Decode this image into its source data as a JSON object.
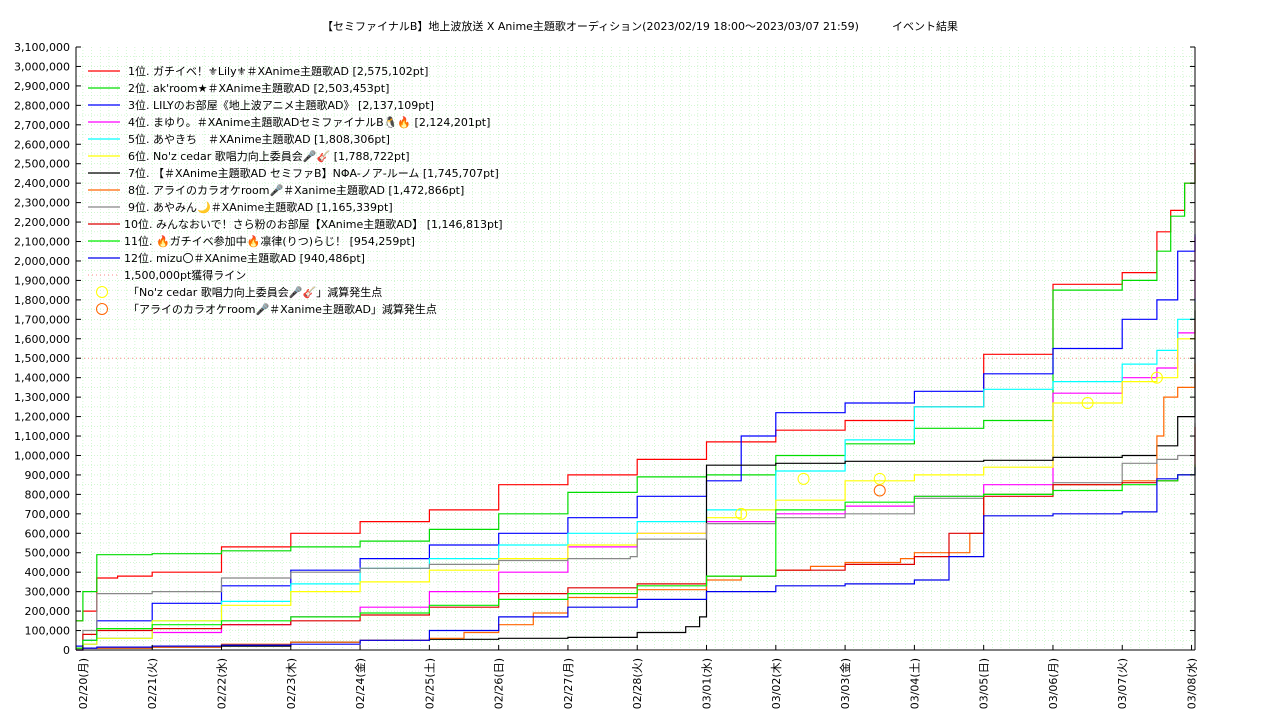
{
  "chart_data": {
    "type": "line",
    "title": "【セミファイナルB】地上波放送 X Anime主題歌オーディション(2023/02/19 18:00～2023/03/07 21:59)　　　イベント結果",
    "xlabel": "",
    "ylabel": "",
    "grid": true,
    "legend_position": "top-left",
    "ylim": [
      0,
      3100000
    ],
    "yticks": [
      0,
      100000,
      200000,
      300000,
      400000,
      500000,
      600000,
      700000,
      800000,
      900000,
      1000000,
      1100000,
      1200000,
      1300000,
      1400000,
      1500000,
      1600000,
      1700000,
      1800000,
      1900000,
      2000000,
      2100000,
      2200000,
      2300000,
      2400000,
      2500000,
      2600000,
      2700000,
      2800000,
      2900000,
      3000000,
      3100000
    ],
    "ytick_labels": [
      "0",
      "100,000",
      "200,000",
      "300,000",
      "400,000",
      "500,000",
      "600,000",
      "700,000",
      "800,000",
      "900,000",
      "1,000,000",
      "1,100,000",
      "1,200,000",
      "1,300,000",
      "1,400,000",
      "1,500,000",
      "1,600,000",
      "1,700,000",
      "1,800,000",
      "1,900,000",
      "2,000,000",
      "2,100,000",
      "2,200,000",
      "2,300,000",
      "2,400,000",
      "2,500,000",
      "2,600,000",
      "2,700,000",
      "2,800,000",
      "2,900,000",
      "3,000,000",
      "3,100,000"
    ],
    "xlim": [
      -0.1,
      16.05
    ],
    "xticks": [
      0,
      1,
      2,
      3,
      4,
      5,
      6,
      7,
      8,
      9,
      10,
      11,
      12,
      13,
      14,
      15,
      16
    ],
    "xtick_labels": [
      "02/20(月)",
      "02/21(火)",
      "02/22(水)",
      "02/23(木)",
      "02/24(金)",
      "02/25(土)",
      "02/26(日)",
      "02/27(月)",
      "02/28(火)",
      "03/01(水)",
      "03/02(木)",
      "03/03(金)",
      "03/04(土)",
      "03/05(日)",
      "03/06(月)",
      "03/07(火)",
      "03/08(水)"
    ],
    "series": [
      {
        "name": "1位. ガチイベ！⚜Lily⚜＃XAnime主題歌AD [2,575,102pt]",
        "color": "#ff0000",
        "x": [
          -0.1,
          0,
          0.2,
          0.5,
          1,
          2,
          3,
          4,
          5,
          6,
          7,
          8,
          9,
          10,
          11,
          12,
          13,
          14,
          15,
          15.5,
          15.7,
          15.9,
          16.05
        ],
        "y": [
          150000,
          200000,
          370000,
          380000,
          400000,
          530000,
          600000,
          660000,
          720000,
          850000,
          900000,
          980000,
          1070000,
          1130000,
          1180000,
          1250000,
          1520000,
          1880000,
          1940000,
          2150000,
          2260000,
          2400000,
          2575102
        ]
      },
      {
        "name": "2位. ak'room★＃XAnime主題歌AD [2,503,453pt]",
        "color": "#00dd00",
        "x": [
          -0.1,
          0,
          0.2,
          1,
          2,
          3,
          4,
          5,
          6,
          7,
          8,
          9,
          10,
          11,
          12,
          13,
          14,
          15,
          15.5,
          15.7,
          15.9,
          16.05
        ],
        "y": [
          150000,
          300000,
          490000,
          495000,
          510000,
          530000,
          560000,
          620000,
          700000,
          810000,
          890000,
          900000,
          1000000,
          1060000,
          1140000,
          1180000,
          1850000,
          1900000,
          2050000,
          2230000,
          2400000,
          2503453
        ]
      },
      {
        "name": "3位. LILYのお部屋《地上波アニメ主題歌AD》 [2,137,109pt]",
        "color": "#0000ff",
        "x": [
          -0.1,
          0,
          0.2,
          1,
          2,
          3,
          4,
          5,
          6,
          7,
          8,
          9,
          9.5,
          10,
          11,
          12,
          13,
          14,
          15,
          15.5,
          15.8,
          16.05
        ],
        "y": [
          20000,
          50000,
          150000,
          240000,
          330000,
          410000,
          470000,
          540000,
          600000,
          680000,
          790000,
          870000,
          1100000,
          1220000,
          1270000,
          1330000,
          1420000,
          1550000,
          1700000,
          1800000,
          2050000,
          2137109
        ]
      },
      {
        "name": "4位. まゆり。＃XAnime主題歌ADセミファイナルB🐧🔥 [2,124,201pt]",
        "color": "#ff00ff",
        "x": [
          -0.1,
          0,
          0.2,
          1,
          2,
          3,
          4,
          5,
          6,
          7,
          8,
          9,
          10,
          11,
          12,
          13,
          14,
          15,
          15.5,
          15.8,
          16.05
        ],
        "y": [
          10000,
          30000,
          60000,
          90000,
          130000,
          170000,
          220000,
          300000,
          400000,
          530000,
          600000,
          660000,
          700000,
          740000,
          790000,
          850000,
          1320000,
          1400000,
          1450000,
          1630000,
          2124201
        ]
      },
      {
        "name": "5位. あやきち　＃XAnime主題歌AD [1,808,306pt]",
        "color": "#00ffff",
        "x": [
          -0.1,
          0,
          0.2,
          1,
          2,
          3,
          4,
          5,
          6,
          7,
          8,
          9,
          10,
          11,
          12,
          13,
          14,
          15,
          15.5,
          15.8,
          16.05
        ],
        "y": [
          10000,
          30000,
          60000,
          150000,
          250000,
          340000,
          420000,
          470000,
          540000,
          600000,
          660000,
          720000,
          920000,
          1080000,
          1250000,
          1340000,
          1380000,
          1470000,
          1540000,
          1700000,
          1808306
        ]
      },
      {
        "name": "6位. No'z cedar 歌唱力向上委員会🎤🎸 [1,788,722pt]",
        "color": "#ffff00",
        "x": [
          -0.1,
          0,
          0.2,
          1,
          2,
          3,
          4,
          5,
          6,
          7,
          8,
          9,
          9.5,
          10,
          11,
          12,
          13,
          14,
          15,
          15.5,
          15.8,
          16.05
        ],
        "y": [
          10000,
          30000,
          60000,
          150000,
          230000,
          300000,
          350000,
          410000,
          470000,
          540000,
          600000,
          680000,
          720000,
          770000,
          870000,
          900000,
          940000,
          1270000,
          1380000,
          1400000,
          1600000,
          1788722
        ]
      },
      {
        "name": "7位. 【＃XAnime主題歌AD セミファB】NΦA-ノア-ルーム [1,745,707pt]",
        "color": "#000000",
        "x": [
          -0.1,
          0,
          1,
          2,
          3,
          4,
          5,
          6,
          7,
          8,
          8.7,
          8.9,
          9,
          10,
          11,
          12,
          13,
          14,
          15,
          15.5,
          15.8,
          16.05
        ],
        "y": [
          0,
          10000,
          15000,
          20000,
          40000,
          50000,
          55000,
          60000,
          65000,
          90000,
          120000,
          170000,
          950000,
          960000,
          970000,
          970000,
          975000,
          990000,
          1000000,
          1050000,
          1200000,
          1745707
        ]
      },
      {
        "name": "8位. アライのカラオケroom🎤＃Xanime主題歌AD [1,472,866pt]",
        "color": "#ff6600",
        "x": [
          -0.1,
          0,
          1,
          2,
          3,
          4,
          5,
          5.5,
          6,
          6.5,
          7,
          8,
          9,
          9.5,
          10,
          10.5,
          11,
          11.8,
          12,
          12.8,
          13,
          14,
          15,
          15.5,
          15.6,
          15.8,
          16.05
        ],
        "y": [
          0,
          10000,
          15000,
          30000,
          40000,
          50000,
          60000,
          90000,
          130000,
          190000,
          270000,
          310000,
          360000,
          380000,
          410000,
          430000,
          450000,
          470000,
          500000,
          600000,
          800000,
          850000,
          870000,
          1100000,
          1300000,
          1350000,
          1472866
        ]
      },
      {
        "name": "9位. あやみん🌙＃XAnime主題歌AD [1,165,339pt]",
        "color": "#888888",
        "x": [
          -0.1,
          0,
          0.2,
          1,
          2,
          3,
          4,
          5,
          6,
          7,
          7.9,
          8,
          9,
          10,
          11,
          12,
          13,
          14,
          15,
          15.5,
          15.8,
          16.05
        ],
        "y": [
          10000,
          100000,
          290000,
          300000,
          370000,
          400000,
          420000,
          440000,
          460000,
          470000,
          480000,
          570000,
          650000,
          680000,
          700000,
          780000,
          800000,
          860000,
          960000,
          980000,
          1000000,
          1165339
        ]
      },
      {
        "name": "10位. みんなおいで！さら粉のお部屋【XAnime主題歌AD】 [1,146,813pt]",
        "color": "#dd0000",
        "x": [
          -0.1,
          0,
          0.2,
          1,
          2,
          3,
          4,
          5,
          6,
          7,
          8,
          9,
          10,
          11,
          12,
          12.5,
          13,
          14,
          15,
          15.5,
          15.8,
          16.05
        ],
        "y": [
          10000,
          80000,
          100000,
          110000,
          130000,
          150000,
          180000,
          220000,
          290000,
          320000,
          340000,
          380000,
          410000,
          440000,
          480000,
          600000,
          790000,
          850000,
          860000,
          870000,
          900000,
          1146813
        ]
      },
      {
        "name": "11位. 🔥ガチイベ参加中🔥凛律(りつ)らじ！ [954,259pt]",
        "color": "#00ee00",
        "x": [
          -0.1,
          0,
          0.2,
          1,
          2,
          3,
          4,
          5,
          6,
          7,
          8,
          9,
          10,
          11,
          12,
          13,
          14,
          15,
          15.5,
          15.8,
          16.05
        ],
        "y": [
          10000,
          50000,
          110000,
          130000,
          150000,
          170000,
          190000,
          230000,
          260000,
          290000,
          330000,
          380000,
          720000,
          760000,
          790000,
          800000,
          820000,
          850000,
          870000,
          900000,
          954259
        ]
      },
      {
        "name": "12位. mizu〇＃XAnime主題歌AD [940,486pt]",
        "color": "#0000ee",
        "x": [
          -0.1,
          0,
          0.2,
          1,
          2,
          3,
          4,
          5,
          6,
          7,
          8,
          9,
          10,
          11,
          12,
          12.5,
          13,
          14,
          15,
          15.5,
          15.8,
          16.05
        ],
        "y": [
          0,
          10000,
          15000,
          20000,
          25000,
          30000,
          50000,
          100000,
          170000,
          220000,
          260000,
          300000,
          330000,
          340000,
          360000,
          480000,
          690000,
          700000,
          710000,
          880000,
          900000,
          940486
        ]
      }
    ],
    "reference_line": {
      "name": "1,500,000pt獲得ライン",
      "value": 1500000,
      "color": "#ff8888"
    },
    "markers": [
      {
        "name": "「No'z cedar 歌唱力向上委員会🎤🎸」減算発生点",
        "color": "#ffff00",
        "points": [
          {
            "x": 9.5,
            "y": 700000
          },
          {
            "x": 10.4,
            "y": 880000
          },
          {
            "x": 11.5,
            "y": 880000
          },
          {
            "x": 14.5,
            "y": 1270000
          },
          {
            "x": 15.5,
            "y": 1400000
          }
        ]
      },
      {
        "name": "「アライのカラオケroom🎤＃Xanime主題歌AD」減算発生点",
        "color": "#ff6600",
        "points": [
          {
            "x": 11.5,
            "y": 820000
          }
        ]
      }
    ]
  }
}
